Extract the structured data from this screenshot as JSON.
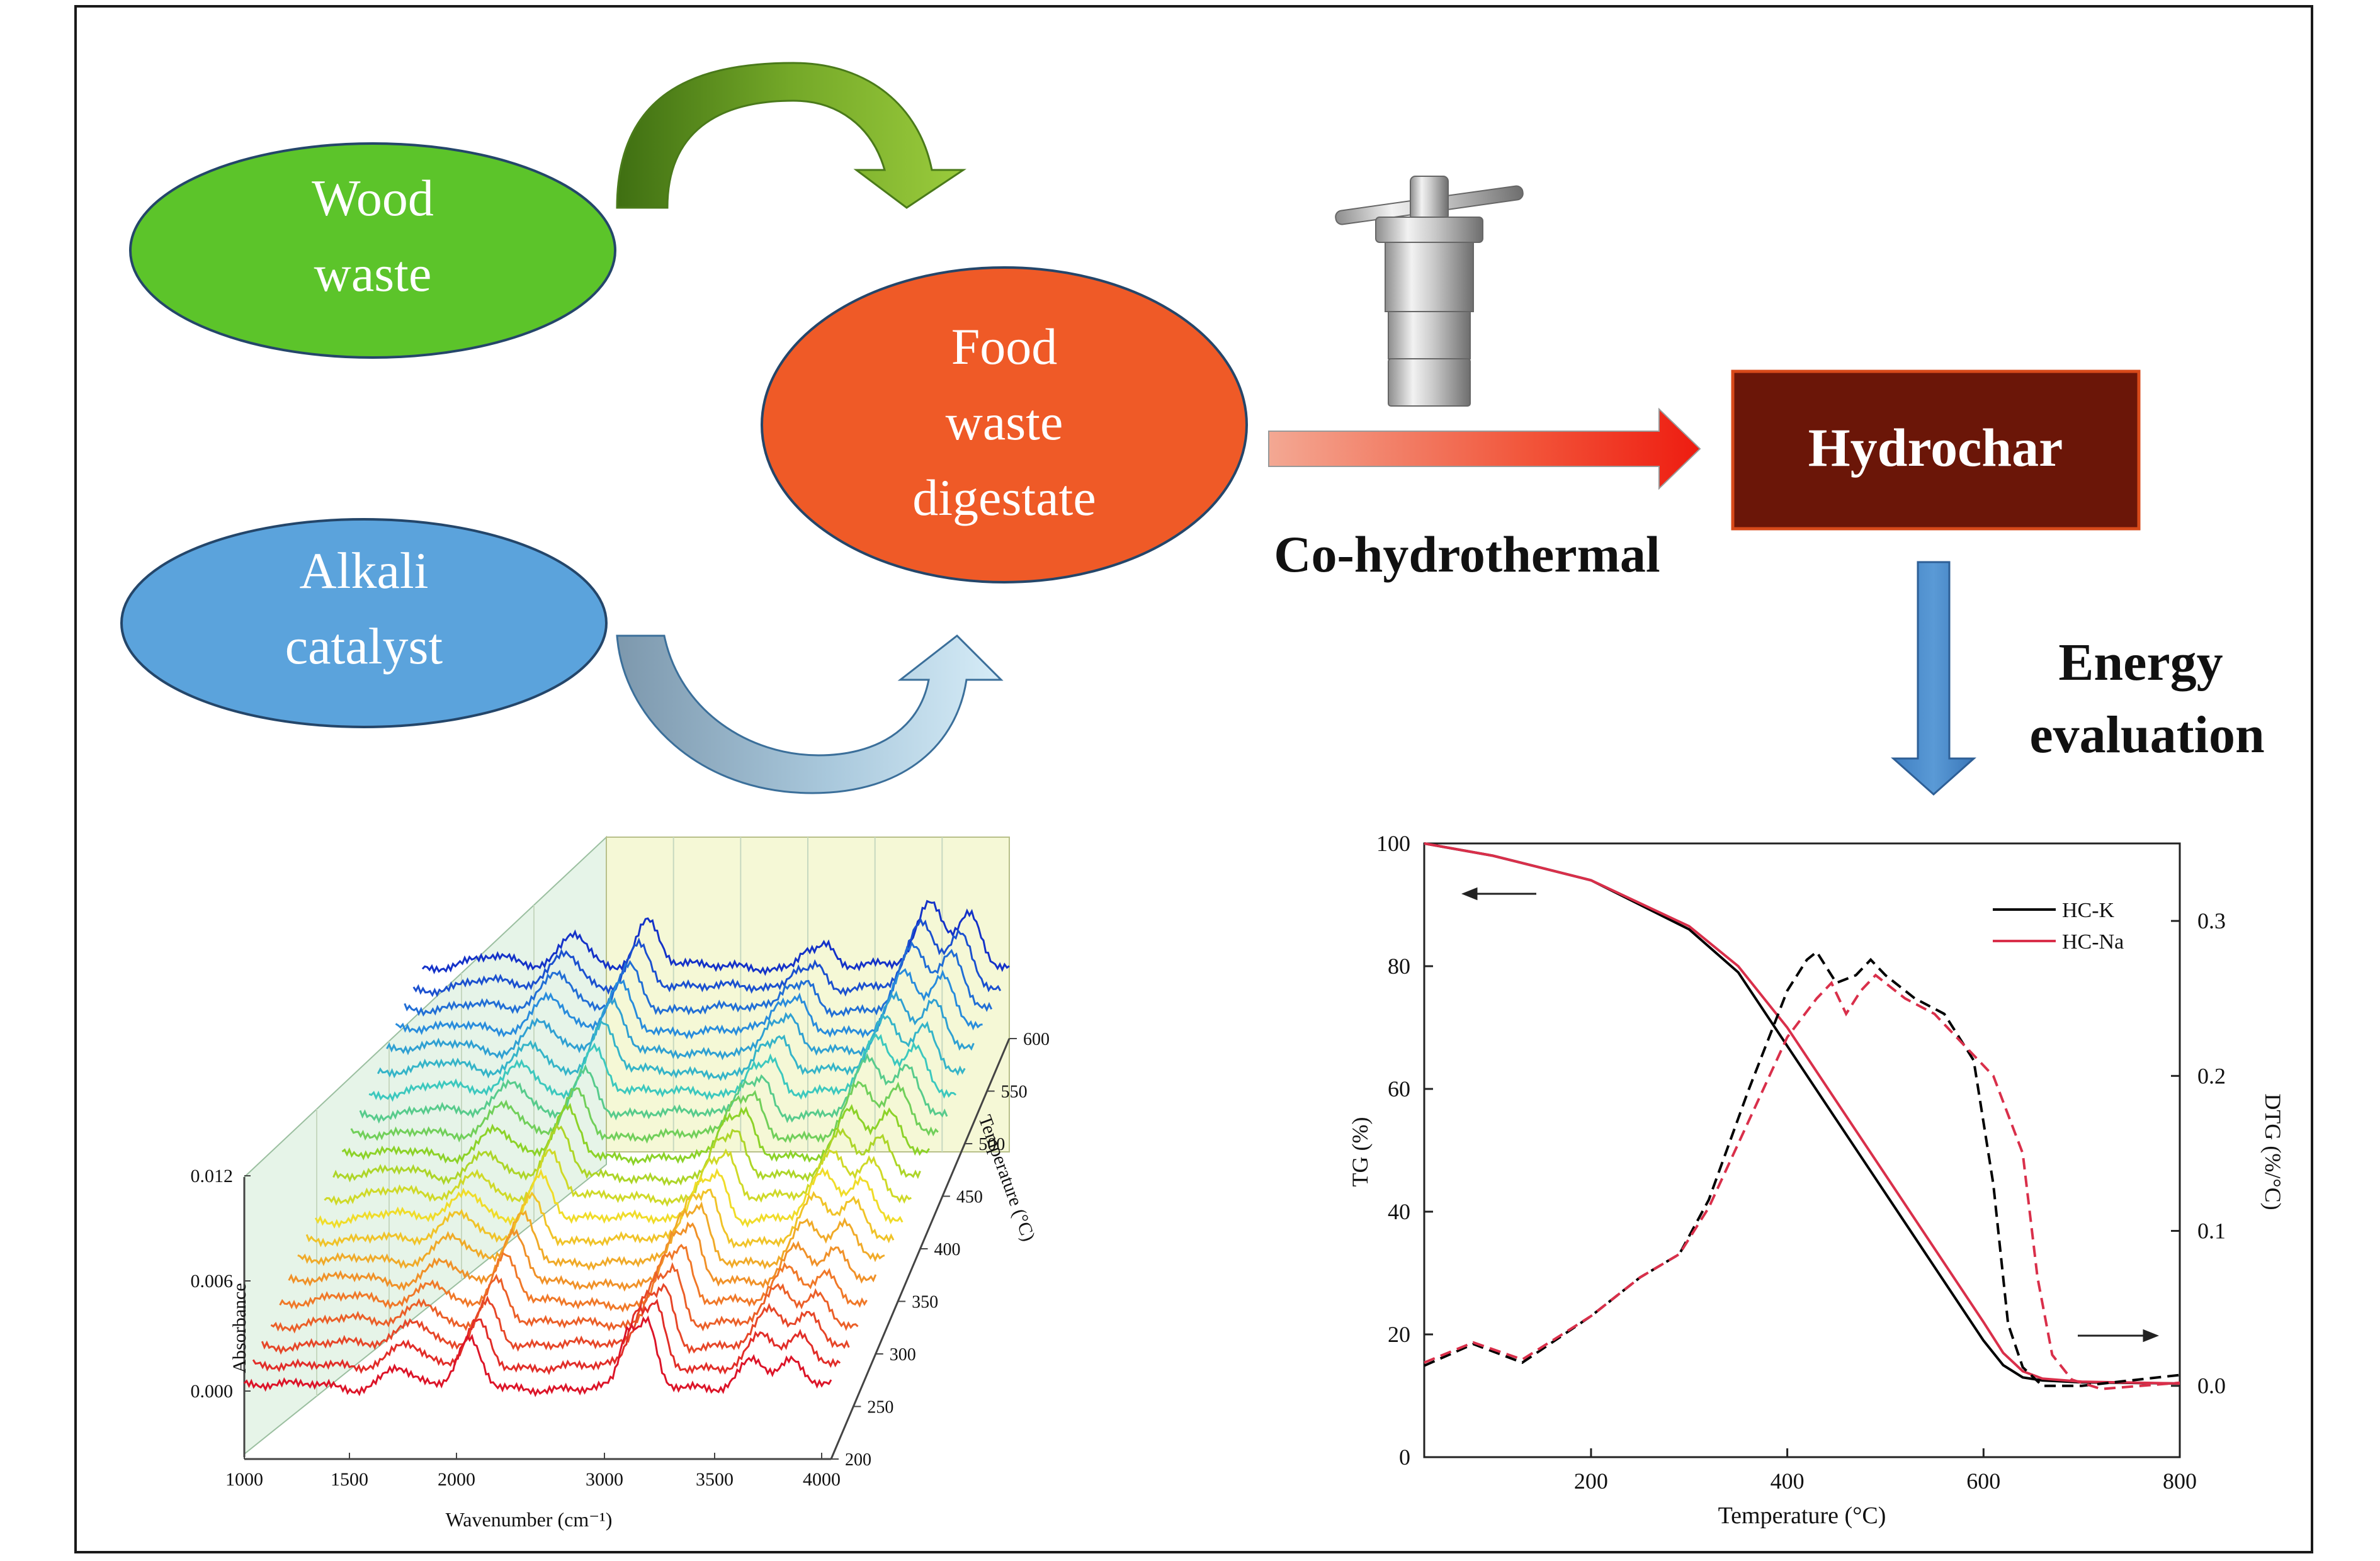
{
  "nodes": {
    "wood_waste": [
      "Wood",
      "waste"
    ],
    "alkali_catalyst": [
      "Alkali",
      "catalyst"
    ],
    "food_waste_digestate": [
      "Food",
      "waste",
      "digestate"
    ],
    "hydrochar": "Hydrochar"
  },
  "edge_labels": {
    "co_hydrothermal": "Co-hydrothermal",
    "energy_evaluation": [
      "Energy",
      "evaluation"
    ]
  },
  "colors": {
    "wood": "#5cc42a",
    "alkali": "#5ba3dc",
    "food": "#ef5a27",
    "hydrochar": "#6b1608",
    "arrow_blue": "#4a86c8",
    "hc_k": "#000000",
    "hc_na": "#d92f4a"
  },
  "chart_data": [
    {
      "type": "line",
      "xlabel": "Wavenumber (cm⁻¹)",
      "ylabel": "Absorbance",
      "zlabel": "Temperature (°C)",
      "x_ticks": [
        "1000",
        "1500",
        "2000",
        "3000",
        "3500",
        "4000"
      ],
      "y_ticks": [
        "0.012",
        "0.006",
        "0.000"
      ],
      "z_ticks": [
        "200",
        "250",
        "300",
        "350",
        "400",
        "450",
        "500",
        "550",
        "600"
      ],
      "series_temperatures": [
        200,
        220,
        240,
        260,
        280,
        300,
        320,
        340,
        360,
        380,
        400,
        420,
        440,
        460,
        480,
        500,
        520,
        540,
        560,
        580,
        600
      ],
      "peak_wavenumbers": [
        1350,
        1780,
        2150,
        2960,
        3060,
        3600,
        3800
      ],
      "grid": true
    },
    {
      "type": "line",
      "xlabel": "Temperature (°C)",
      "ylabel": "TG (%)",
      "y2label": "DTG (%/°C)",
      "xlim": [
        30,
        800
      ],
      "ylim": [
        0,
        100
      ],
      "y2lim": [
        -0.046,
        0.35
      ],
      "x_ticks": [
        "200",
        "400",
        "600",
        "800"
      ],
      "y_ticks": [
        "0",
        "20",
        "40",
        "60",
        "80",
        "100"
      ],
      "y2_ticks": [
        "0.0",
        "0.1",
        "0.2",
        "0.3"
      ],
      "legend_position": "top-right",
      "series": [
        {
          "name": "HC-K",
          "axis": "TG",
          "style": "solid",
          "x": [
            30,
            100,
            200,
            300,
            350,
            400,
            450,
            500,
            550,
            600,
            620,
            640,
            660,
            700,
            800
          ],
          "y": [
            100,
            98,
            94,
            86,
            79,
            67,
            55,
            43,
            31,
            19,
            15,
            13,
            12.5,
            12.2,
            12
          ]
        },
        {
          "name": "HC-Na",
          "axis": "TG",
          "style": "solid",
          "x": [
            30,
            100,
            200,
            300,
            350,
            400,
            450,
            500,
            550,
            600,
            620,
            640,
            660,
            700,
            800
          ],
          "y": [
            100,
            98,
            94,
            86.5,
            80,
            70,
            58,
            46,
            34,
            22,
            17,
            14,
            12.8,
            12.3,
            12
          ]
        },
        {
          "name": "HC-K",
          "axis": "DTG",
          "style": "dashed",
          "x": [
            30,
            80,
            130,
            200,
            250,
            290,
            320,
            360,
            400,
            420,
            430,
            450,
            470,
            485,
            500,
            530,
            560,
            590,
            610,
            625,
            640,
            660,
            700,
            800
          ],
          "y": [
            0.013,
            0.027,
            0.015,
            0.045,
            0.07,
            0.085,
            0.12,
            0.19,
            0.255,
            0.275,
            0.28,
            0.26,
            0.265,
            0.275,
            0.265,
            0.25,
            0.24,
            0.21,
            0.13,
            0.04,
            0.012,
            0.0,
            0.0,
            0.007
          ]
        },
        {
          "name": "HC-Na",
          "axis": "DTG",
          "style": "dashed",
          "x": [
            30,
            80,
            130,
            200,
            250,
            290,
            320,
            360,
            400,
            430,
            445,
            460,
            475,
            490,
            520,
            550,
            580,
            610,
            640,
            655,
            670,
            690,
            720,
            800
          ],
          "y": [
            0.015,
            0.028,
            0.017,
            0.045,
            0.07,
            0.085,
            0.115,
            0.17,
            0.225,
            0.25,
            0.26,
            0.24,
            0.255,
            0.265,
            0.25,
            0.24,
            0.22,
            0.2,
            0.15,
            0.07,
            0.02,
            0.004,
            -0.002,
            0.002
          ]
        }
      ],
      "annotations": [
        "left arrow near TG curve start",
        "right arrow near DTG curve end"
      ]
    }
  ]
}
